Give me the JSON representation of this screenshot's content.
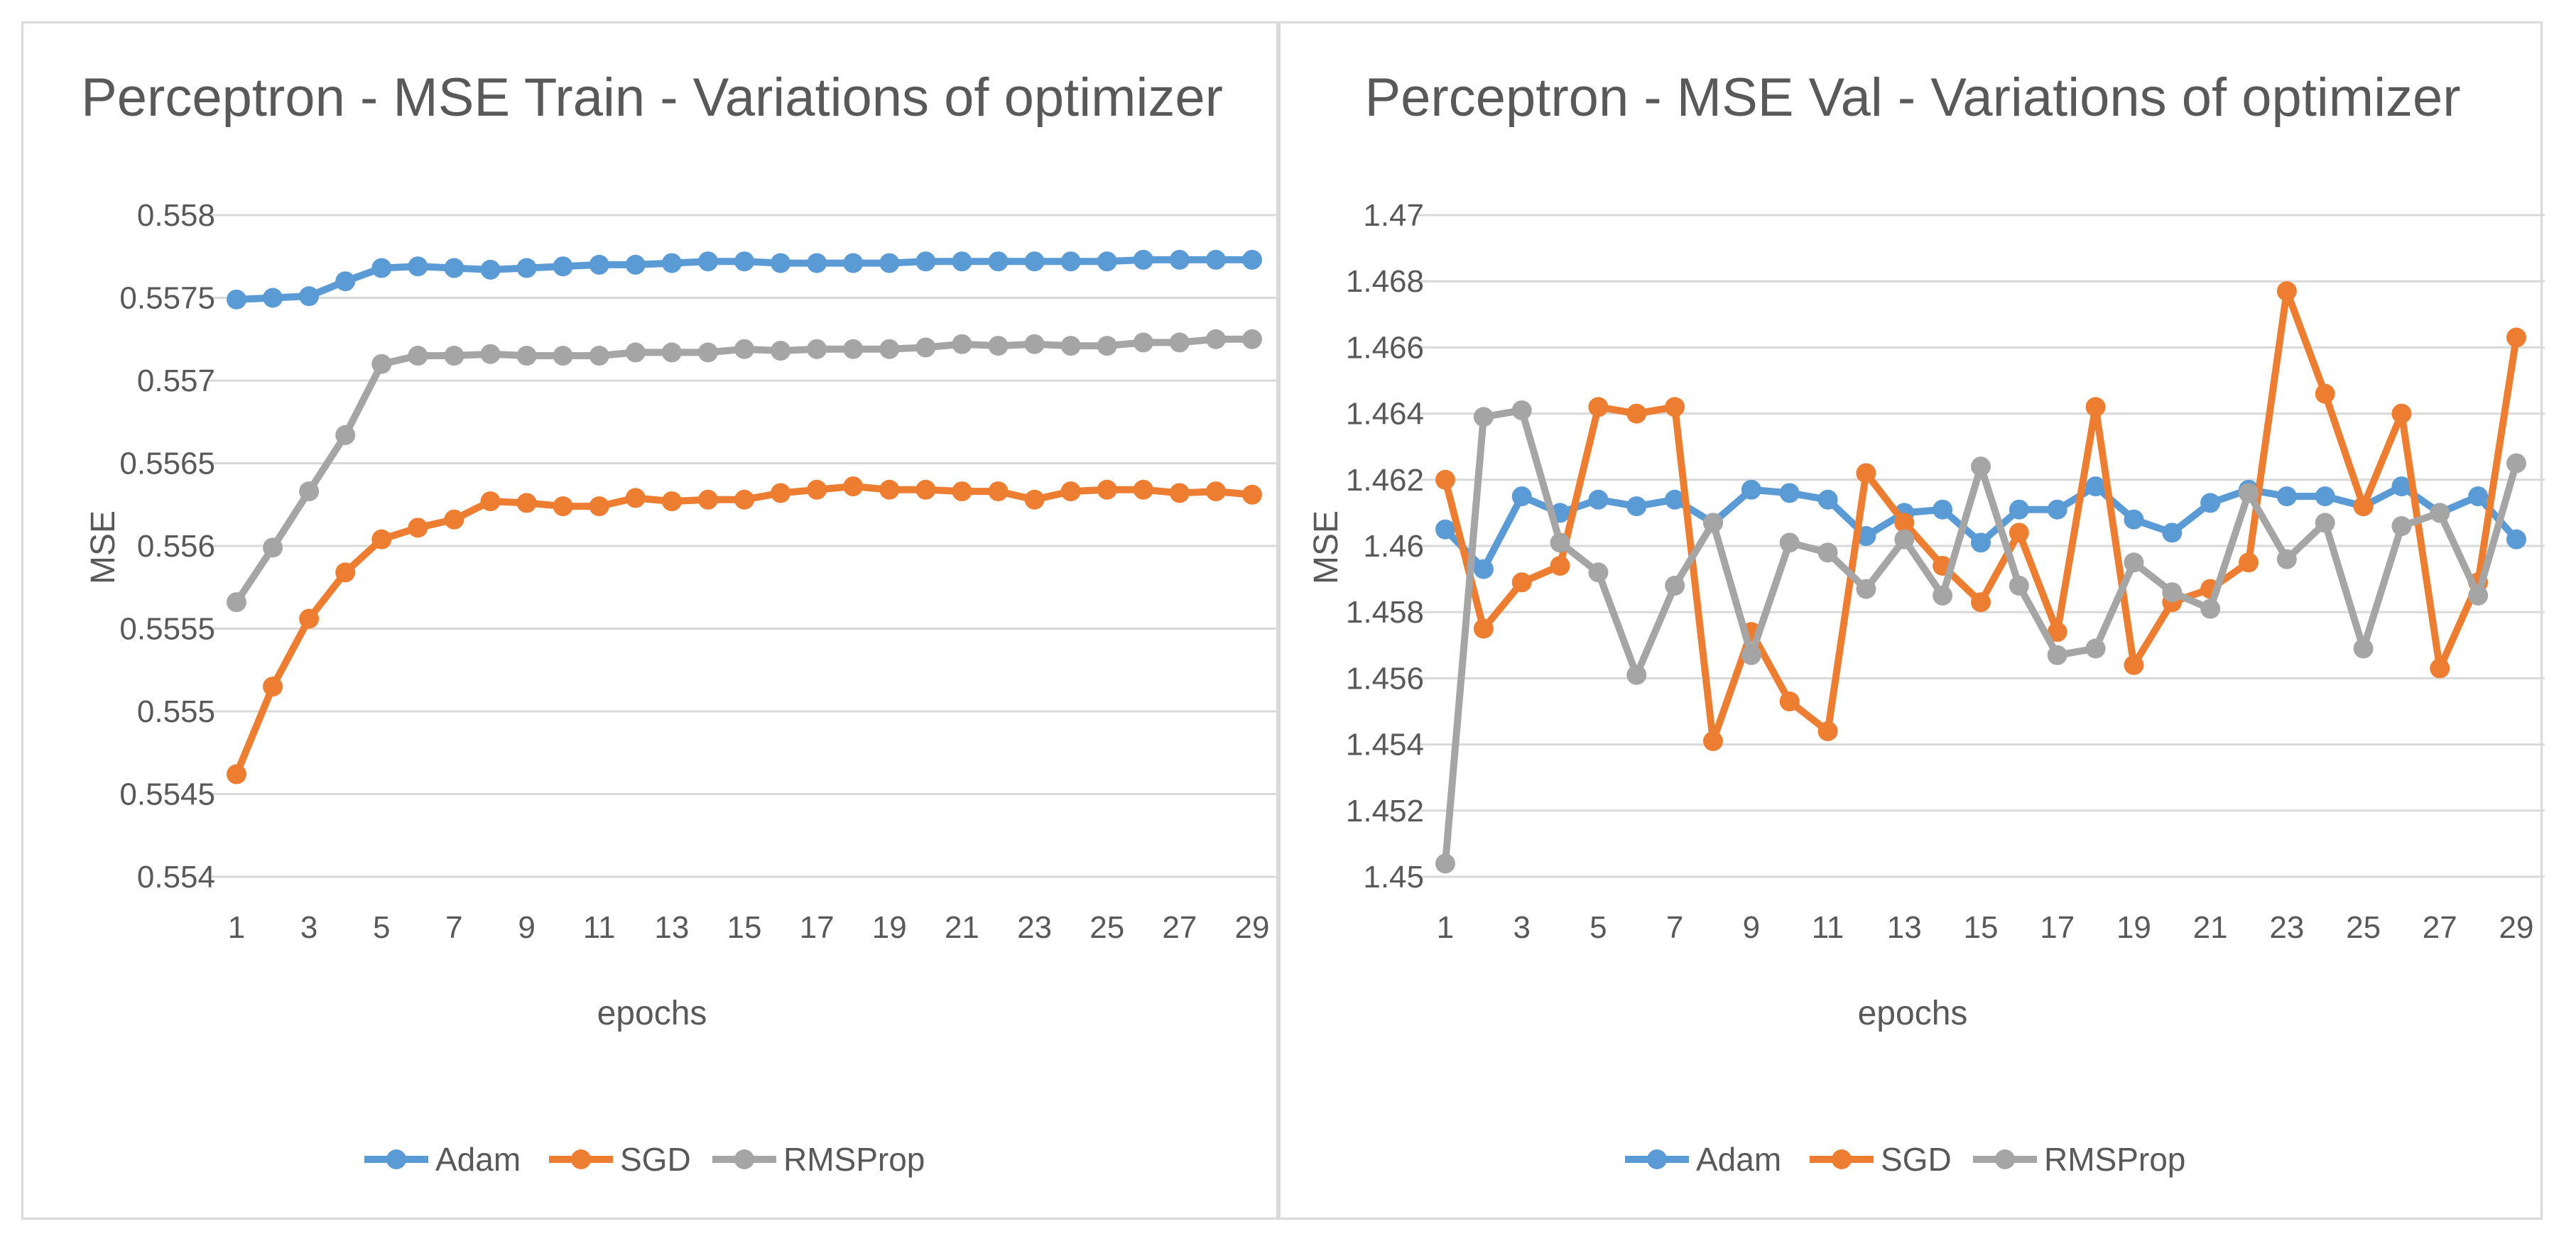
{
  "chart_data": [
    {
      "type": "line",
      "title": "Perceptron - MSE Train - Variations of optimizer",
      "xlabel": "epochs",
      "ylabel": "MSE",
      "x": [
        1,
        2,
        3,
        4,
        5,
        6,
        7,
        8,
        9,
        10,
        11,
        12,
        13,
        14,
        15,
        16,
        17,
        18,
        19,
        20,
        21,
        22,
        23,
        24,
        25,
        26,
        27,
        28,
        29
      ],
      "x_tick_labels": [
        "1",
        "3",
        "5",
        "7",
        "9",
        "11",
        "13",
        "15",
        "17",
        "19",
        "21",
        "23",
        "25",
        "27",
        "29"
      ],
      "ylim": [
        0.554,
        0.558
      ],
      "y_tick_labels": [
        "0.554",
        "0.5545",
        "0.555",
        "0.5555",
        "0.556",
        "0.5565",
        "0.557",
        "0.5575",
        "0.558"
      ],
      "legend": "bottom",
      "series": [
        {
          "name": "Adam",
          "color": "#5b9bd5",
          "values": [
            0.55749,
            0.5575,
            0.55751,
            0.5576,
            0.55768,
            0.55769,
            0.55768,
            0.55767,
            0.55768,
            0.55769,
            0.5577,
            0.5577,
            0.55771,
            0.55772,
            0.55772,
            0.55771,
            0.55771,
            0.55771,
            0.55771,
            0.55772,
            0.55772,
            0.55772,
            0.55772,
            0.55772,
            0.55772,
            0.55773,
            0.55773,
            0.55773,
            0.55773
          ]
        },
        {
          "name": "SGD",
          "color": "#ed7d31",
          "values": [
            0.55462,
            0.55515,
            0.55556,
            0.55584,
            0.55604,
            0.55611,
            0.55616,
            0.55627,
            0.55626,
            0.55624,
            0.55624,
            0.55629,
            0.55627,
            0.55628,
            0.55628,
            0.55632,
            0.55634,
            0.55636,
            0.55634,
            0.55634,
            0.55633,
            0.55633,
            0.55628,
            0.55633,
            0.55634,
            0.55634,
            0.55632,
            0.55633,
            0.55631
          ]
        },
        {
          "name": "RMSProp",
          "color": "#a5a5a5",
          "values": [
            0.55566,
            0.55599,
            0.55633,
            0.55667,
            0.5571,
            0.55715,
            0.55715,
            0.55716,
            0.55715,
            0.55715,
            0.55715,
            0.55717,
            0.55717,
            0.55717,
            0.55719,
            0.55718,
            0.55719,
            0.55719,
            0.55719,
            0.5572,
            0.55722,
            0.55721,
            0.55722,
            0.55721,
            0.55721,
            0.55723,
            0.55723,
            0.55725,
            0.55725
          ]
        }
      ]
    },
    {
      "type": "line",
      "title": "Perceptron - MSE Val - Variations of optimizer",
      "xlabel": "epochs",
      "ylabel": "MSE",
      "x": [
        1,
        2,
        3,
        4,
        5,
        6,
        7,
        8,
        9,
        10,
        11,
        12,
        13,
        14,
        15,
        16,
        17,
        18,
        19,
        20,
        21,
        22,
        23,
        24,
        25,
        26,
        27,
        28,
        29
      ],
      "x_tick_labels": [
        "1",
        "3",
        "5",
        "7",
        "9",
        "11",
        "13",
        "15",
        "17",
        "19",
        "21",
        "23",
        "25",
        "27",
        "29"
      ],
      "ylim": [
        1.45,
        1.47
      ],
      "y_tick_labels": [
        "1.45",
        "1.452",
        "1.454",
        "1.456",
        "1.458",
        "1.46",
        "1.462",
        "1.464",
        "1.466",
        "1.468",
        "1.47"
      ],
      "legend": "bottom",
      "series": [
        {
          "name": "Adam",
          "color": "#5b9bd5",
          "values": [
            1.4605,
            1.4593,
            1.4615,
            1.461,
            1.4614,
            1.4612,
            1.4614,
            1.4607,
            1.4617,
            1.4616,
            1.4614,
            1.4603,
            1.461,
            1.4611,
            1.4601,
            1.4611,
            1.4611,
            1.4618,
            1.4608,
            1.4604,
            1.4613,
            1.4617,
            1.4615,
            1.4615,
            1.4612,
            1.4618,
            1.461,
            1.4615,
            1.4602
          ]
        },
        {
          "name": "SGD",
          "color": "#ed7d31",
          "values": [
            1.462,
            1.4575,
            1.4589,
            1.4594,
            1.4642,
            1.464,
            1.4642,
            1.4541,
            1.4574,
            1.4553,
            1.4544,
            1.4622,
            1.4607,
            1.4594,
            1.4583,
            1.4604,
            1.4574,
            1.4642,
            1.4564,
            1.4583,
            1.4587,
            1.4595,
            1.4677,
            1.4646,
            1.4612,
            1.464,
            1.4563,
            1.4589,
            1.4663
          ]
        },
        {
          "name": "RMSProp",
          "color": "#a5a5a5",
          "values": [
            1.4504,
            1.4639,
            1.4641,
            1.4601,
            1.4592,
            1.4561,
            1.4588,
            1.4607,
            1.4567,
            1.4601,
            1.4598,
            1.4587,
            1.4602,
            1.4585,
            1.4624,
            1.4588,
            1.4567,
            1.4569,
            1.4595,
            1.4586,
            1.4581,
            1.4616,
            1.4596,
            1.4607,
            1.4569,
            1.4606,
            1.461,
            1.4585,
            1.4625
          ]
        }
      ]
    }
  ]
}
